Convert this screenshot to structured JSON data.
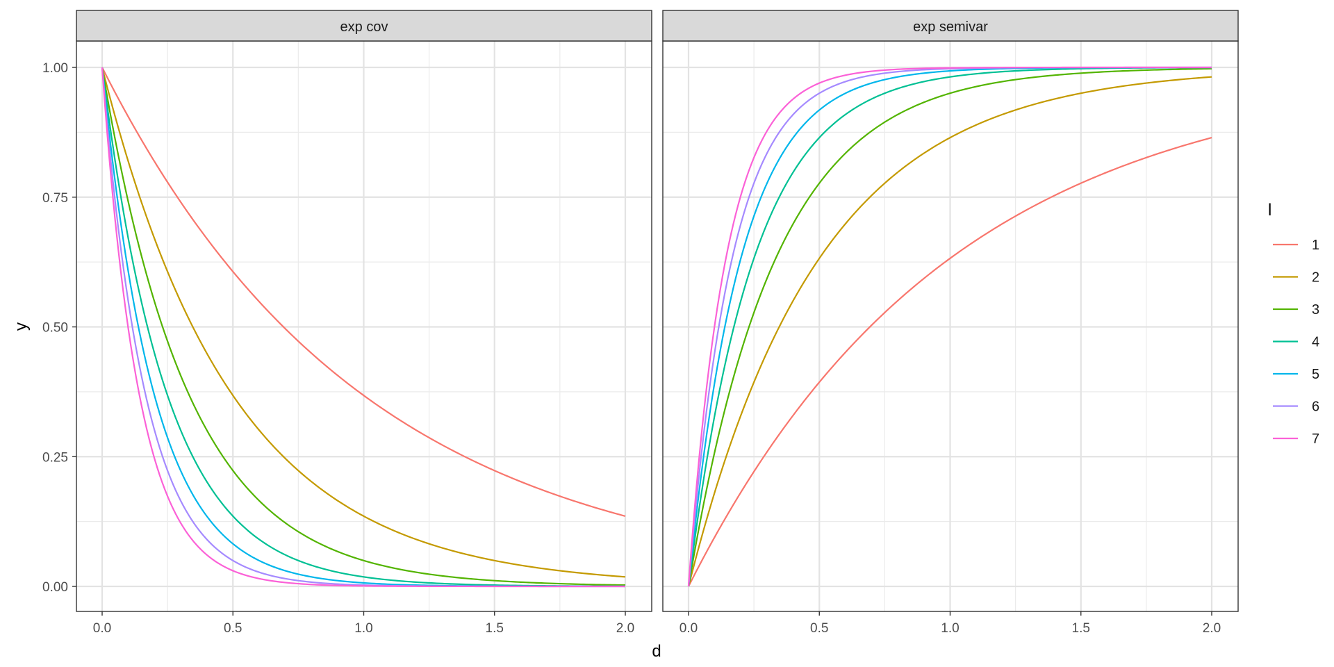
{
  "chart_data": {
    "type": "line",
    "facet_variable": "panel",
    "panels": [
      {
        "title": "exp cov",
        "kind": "cov"
      },
      {
        "title": "exp semivar",
        "kind": "semivar"
      }
    ],
    "xlabel": "d",
    "ylabel": "y",
    "xlim": [
      0,
      2
    ],
    "ylim": [
      0,
      1
    ],
    "x_ticks": [
      "0.0",
      "0.5",
      "1.0",
      "1.5",
      "2.0"
    ],
    "y_ticks": [
      "0.00",
      "0.25",
      "0.50",
      "0.75",
      "1.00"
    ],
    "grid": true,
    "legend": {
      "title": "l",
      "position": "right"
    },
    "series": [
      {
        "name": "1",
        "l": 1,
        "color": "#F8766D"
      },
      {
        "name": "2",
        "l": 2,
        "color": "#C49A00"
      },
      {
        "name": "3",
        "l": 3,
        "color": "#53B400"
      },
      {
        "name": "4",
        "l": 4,
        "color": "#00C094"
      },
      {
        "name": "5",
        "l": 5,
        "color": "#00B6EB"
      },
      {
        "name": "6",
        "l": 6,
        "color": "#A58AFF"
      },
      {
        "name": "7",
        "l": 7,
        "color": "#FB61D7"
      }
    ],
    "x": [
      0,
      0.1,
      0.2,
      0.3,
      0.4,
      0.5,
      0.6,
      0.7,
      0.8,
      0.9,
      1.0,
      1.1,
      1.2,
      1.3,
      1.4,
      1.5,
      1.6,
      1.7,
      1.8,
      1.9,
      2.0
    ],
    "cov_values": {
      "1": [
        1.0,
        0.905,
        0.819,
        0.741,
        0.67,
        0.607,
        0.549,
        0.497,
        0.449,
        0.407,
        0.368,
        0.333,
        0.301,
        0.273,
        0.247,
        0.223,
        0.202,
        0.183,
        0.165,
        0.15,
        0.135
      ],
      "2": [
        1.0,
        0.819,
        0.67,
        0.549,
        0.449,
        0.368,
        0.301,
        0.247,
        0.202,
        0.165,
        0.135,
        0.111,
        0.091,
        0.074,
        0.061,
        0.05,
        0.041,
        0.033,
        0.027,
        0.022,
        0.018
      ],
      "3": [
        1.0,
        0.741,
        0.549,
        0.407,
        0.301,
        0.223,
        0.165,
        0.122,
        0.091,
        0.067,
        0.05,
        0.037,
        0.027,
        0.02,
        0.015,
        0.011,
        0.008,
        0.006,
        0.005,
        0.003,
        0.002
      ],
      "4": [
        1.0,
        0.67,
        0.449,
        0.301,
        0.202,
        0.135,
        0.091,
        0.061,
        0.041,
        0.027,
        0.018,
        0.012,
        0.008,
        0.006,
        0.004,
        0.002,
        0.002,
        0.001,
        0.001,
        0.0,
        0.0
      ],
      "5": [
        1.0,
        0.607,
        0.368,
        0.223,
        0.135,
        0.082,
        0.05,
        0.03,
        0.018,
        0.011,
        0.007,
        0.004,
        0.002,
        0.002,
        0.001,
        0.001,
        0.0,
        0.0,
        0.0,
        0.0,
        0.0
      ],
      "6": [
        1.0,
        0.549,
        0.301,
        0.165,
        0.091,
        0.05,
        0.027,
        0.015,
        0.008,
        0.005,
        0.002,
        0.001,
        0.001,
        0.0,
        0.0,
        0.0,
        0.0,
        0.0,
        0.0,
        0.0,
        0.0
      ],
      "7": [
        1.0,
        0.497,
        0.247,
        0.122,
        0.061,
        0.03,
        0.015,
        0.007,
        0.004,
        0.002,
        0.001,
        0.0,
        0.0,
        0.0,
        0.0,
        0.0,
        0.0,
        0.0,
        0.0,
        0.0,
        0.0
      ]
    },
    "semivar_values": {
      "1": [
        0.0,
        0.095,
        0.181,
        0.259,
        0.33,
        0.393,
        0.451,
        0.503,
        0.551,
        0.593,
        0.632,
        0.667,
        0.699,
        0.727,
        0.753,
        0.777,
        0.798,
        0.817,
        0.835,
        0.85,
        0.865
      ],
      "2": [
        0.0,
        0.181,
        0.33,
        0.451,
        0.551,
        0.632,
        0.699,
        0.753,
        0.798,
        0.835,
        0.865,
        0.889,
        0.909,
        0.926,
        0.939,
        0.95,
        0.959,
        0.967,
        0.973,
        0.978,
        0.982
      ],
      "3": [
        0.0,
        0.259,
        0.451,
        0.593,
        0.699,
        0.777,
        0.835,
        0.878,
        0.909,
        0.933,
        0.95,
        0.963,
        0.973,
        0.98,
        0.985,
        0.989,
        0.992,
        0.994,
        0.995,
        0.997,
        0.998
      ],
      "4": [
        0.0,
        0.33,
        0.551,
        0.699,
        0.798,
        0.865,
        0.909,
        0.939,
        0.959,
        0.973,
        0.982,
        0.988,
        0.992,
        0.994,
        0.996,
        0.998,
        0.998,
        0.999,
        0.999,
        1.0,
        1.0
      ],
      "5": [
        0.0,
        0.393,
        0.632,
        0.777,
        0.865,
        0.918,
        0.95,
        0.97,
        0.982,
        0.989,
        0.993,
        0.996,
        0.998,
        0.998,
        0.999,
        0.999,
        1.0,
        1.0,
        1.0,
        1.0,
        1.0
      ],
      "6": [
        0.0,
        0.451,
        0.699,
        0.835,
        0.909,
        0.95,
        0.973,
        0.985,
        0.992,
        0.995,
        0.998,
        0.999,
        0.999,
        1.0,
        1.0,
        1.0,
        1.0,
        1.0,
        1.0,
        1.0,
        1.0
      ],
      "7": [
        0.0,
        0.503,
        0.753,
        0.878,
        0.939,
        0.97,
        0.985,
        0.993,
        0.996,
        0.998,
        0.999,
        1.0,
        1.0,
        1.0,
        1.0,
        1.0,
        1.0,
        1.0,
        1.0,
        1.0,
        1.0
      ]
    }
  }
}
